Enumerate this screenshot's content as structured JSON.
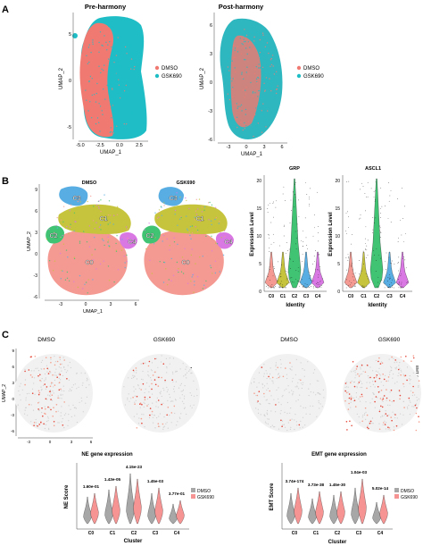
{
  "panel_a": {
    "letter": "A",
    "plots": [
      {
        "title": "Pre-harmony",
        "xlabel": "UMAP_1",
        "ylabel": "UMAP_2",
        "xticks": [
          "-5.0",
          "-2.5",
          "0.0",
          "2.5"
        ],
        "yticks": [
          "5",
          "0",
          "-5"
        ]
      },
      {
        "title": "Post-harmony",
        "xlabel": "UMAP_1",
        "ylabel": "UMAP_2",
        "xticks": [
          "-3",
          "0",
          "3",
          "6"
        ],
        "yticks": [
          "6",
          "3",
          "0",
          "-3",
          "-6"
        ]
      }
    ],
    "legend": [
      {
        "label": "DMSO",
        "color": "#f07a72"
      },
      {
        "label": "GSK690",
        "color": "#1fbec6"
      }
    ]
  },
  "panel_b": {
    "letter": "B",
    "umap_titles": [
      "DMSO",
      "GSK690"
    ],
    "xlabel": "UMAP_1",
    "ylabel": "UMAP_2",
    "xticks": [
      "-3",
      "0",
      "3",
      "6"
    ],
    "yticks": [
      "9",
      "6",
      "3",
      "0",
      "-3",
      "-6"
    ],
    "clusters": [
      {
        "label": "C0",
        "color": "#f49a92"
      },
      {
        "label": "C1",
        "color": "#c6c43c"
      },
      {
        "label": "C2",
        "color": "#40c473"
      },
      {
        "label": "C3",
        "color": "#58aee3"
      },
      {
        "label": "C4",
        "color": "#d977e3"
      }
    ],
    "violins": [
      {
        "title": "GRP",
        "ylabel": "Expression Level",
        "xlabel": "Identity",
        "yticks": [
          "0",
          "5",
          "10",
          "15",
          "20"
        ]
      },
      {
        "title": "ASCL1",
        "ylabel": "Expression Level",
        "xlabel": "Identity",
        "yticks": [
          "0",
          "5",
          "10",
          "15",
          "20"
        ]
      }
    ],
    "identity_labels": [
      "C0",
      "C1",
      "C2",
      "C3",
      "C4"
    ]
  },
  "panel_c": {
    "letter": "C",
    "feature_titles": [
      "DMSO",
      "GSK690",
      "DMSO",
      "GSK690"
    ],
    "side_labels": [
      "NE score",
      "EMT score"
    ],
    "xticks": [
      "-3",
      "0",
      "3",
      "6"
    ],
    "yticks": [
      "9",
      "6",
      "3",
      "0",
      "-3",
      "-6"
    ],
    "ylabel": "UMAP_2",
    "legend": [
      {
        "label": "DMSO",
        "color": "#a7a7a7"
      },
      {
        "label": "GSK690",
        "color": "#f59493"
      }
    ]
  },
  "chart_data": [
    {
      "type": "violin",
      "title": "NE gene expression",
      "xlabel": "Cluster",
      "ylabel": "NE Score",
      "categories": [
        "C0",
        "C1",
        "C2",
        "C3",
        "C4"
      ],
      "series": [
        {
          "name": "DMSO"
        },
        {
          "name": "GSK690"
        }
      ],
      "annotations": [
        "1.60e-01",
        "1.43e-05",
        "4.15e-23",
        "1.45e-03",
        "3.77e-01"
      ]
    },
    {
      "type": "violin",
      "title": "EMT gene expression",
      "xlabel": "Cluster",
      "ylabel": "EMT Score",
      "categories": [
        "C0",
        "C1",
        "C2",
        "C3",
        "C4"
      ],
      "series": [
        {
          "name": "DMSO"
        },
        {
          "name": "GSK690"
        }
      ],
      "annotations": [
        "3.74e-174",
        "3.73e-38",
        "1.45e-30",
        "1.04e-03",
        "5.02e-14"
      ]
    }
  ]
}
